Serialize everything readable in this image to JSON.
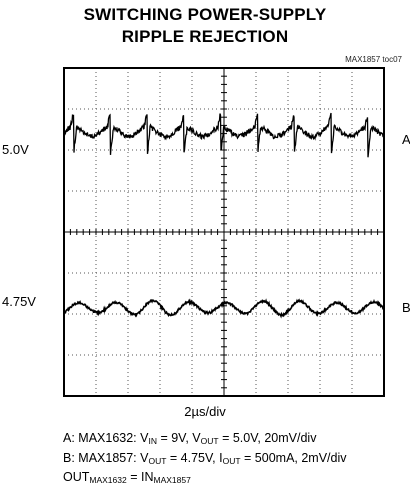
{
  "chart_data": {
    "type": "line",
    "title": "SWITCHING POWER-SUPPLY",
    "subtitle": "RIPPLE REJECTION",
    "figure_tag": "MAX1857 toc07",
    "xlabel": "2µs/div",
    "grid": true,
    "divisions": {
      "x": 10,
      "y": 8
    },
    "series": [
      {
        "name": "A",
        "level_label": "5.0V",
        "scale": "20mV/div",
        "ripple_period_div": 1.15,
        "spike_count": 9
      },
      {
        "name": "B",
        "level_label": "4.75V",
        "scale": "2mV/div",
        "ripple_period_div": 1.15
      }
    ],
    "notes": {
      "line_a": {
        "prefix": "A: MAX1632: V",
        "vin_sub": "IN",
        "vin_val": " = 9V, V",
        "vout_sub": "OUT",
        "vout_val": " = 5.0V, 20mV/div"
      },
      "line_b": {
        "prefix": "B: MAX1857: V",
        "vout_sub": "OUT",
        "vout_val": " = 4.75V, I",
        "iout_sub": "OUT",
        "iout_val": " = 500mA, 2mV/div"
      },
      "line_c": {
        "out": "OUT",
        "out_sub": "MAX1632",
        "eq": " = IN",
        "in_sub": "MAX1857"
      }
    }
  }
}
